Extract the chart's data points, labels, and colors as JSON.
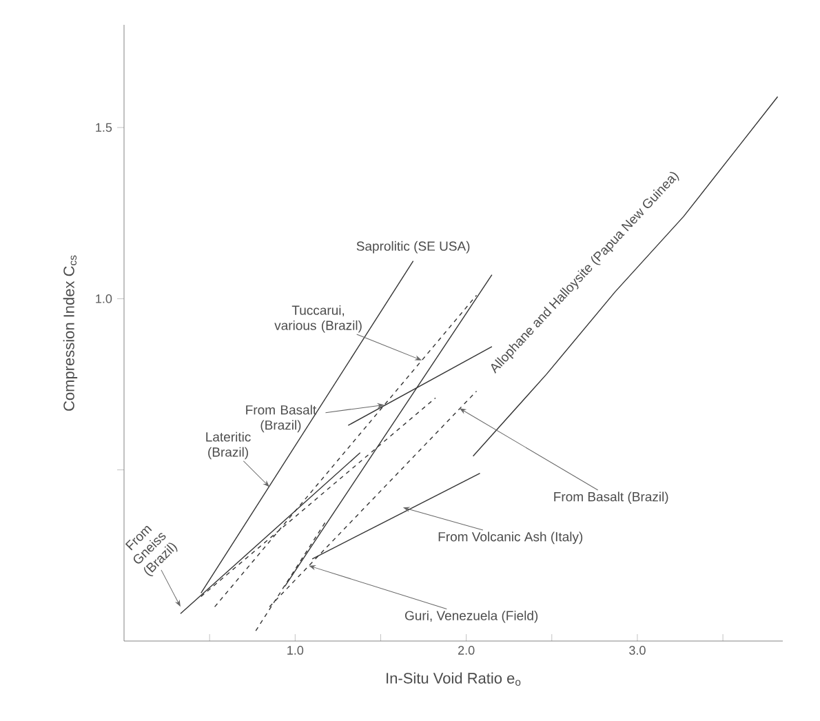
{
  "chart_data": {
    "type": "line",
    "xlabel": "In-Situ Void Ratio e$_{o}$",
    "ylabel": "Compression Index C$_{cs}$",
    "xlim": [
      0,
      3.85
    ],
    "ylim": [
      0,
      1.8
    ],
    "xticks": [
      {
        "value": 0.5,
        "label": null
      },
      {
        "value": 1,
        "label": "1.0"
      },
      {
        "value": 1.5,
        "label": null
      },
      {
        "value": 2,
        "label": "2.0"
      },
      {
        "value": 2.5,
        "label": null
      },
      {
        "value": 3,
        "label": "3.0"
      },
      {
        "value": 3.5,
        "label": null
      }
    ],
    "yticks": [
      {
        "value": 0.5,
        "label": null
      },
      {
        "value": 1,
        "label": "1.0"
      },
      {
        "value": 1.5,
        "label": "1.5"
      }
    ],
    "marker": "none",
    "series": [
      {
        "color": "#333333",
        "line_style": "solid",
        "x": [
          2.04,
          2.47,
          2.87,
          3.27,
          3.6,
          3.82
        ],
        "values": [
          0.54,
          0.78,
          1.02,
          1.24,
          1.45,
          1.59
        ]
      },
      {
        "color": "#333333",
        "line_style": "solid",
        "x": [
          0.45,
          1.69
        ],
        "values": [
          0.14,
          1.11
        ]
      },
      {
        "color": "#333333",
        "line_style": "dashed",
        "x": [
          0.53,
          2.06
        ],
        "values": [
          0.1,
          1.01
        ]
      },
      {
        "color": "#333333",
        "line_style": "solid",
        "x": [
          0.94,
          2.15
        ],
        "values": [
          0.16,
          1.07
        ]
      },
      {
        "color": "#333333",
        "line_style": "solid",
        "x": [
          0.33,
          1.38
        ],
        "values": [
          0.08,
          0.55
        ]
      },
      {
        "color": "#333333",
        "line_style": "dashed",
        "x": [
          0.45,
          1.82
        ],
        "values": [
          0.13,
          0.71
        ]
      },
      {
        "color": "#333333",
        "line_style": "solid",
        "x": [
          1.31,
          2.15
        ],
        "values": [
          0.63,
          0.86
        ]
      },
      {
        "color": "#333333",
        "line_style": "dashed",
        "x": [
          0.85,
          2.06
        ],
        "values": [
          0.1,
          0.73
        ]
      },
      {
        "color": "#333333",
        "line_style": "solid",
        "x": [
          1.1,
          2.08
        ],
        "values": [
          0.24,
          0.49
        ]
      },
      {
        "color": "#333333",
        "line_style": "dashed",
        "x": [
          0.77,
          1.18
        ],
        "values": [
          0.03,
          0.35
        ]
      }
    ],
    "annotations": [
      {
        "text": "Saprolitic (SE USA)",
        "x": 1.69,
        "y": 1.11
      },
      {
        "text": "Tuccarui, various (Brazil)",
        "x": 1.74,
        "y": 0.82
      },
      {
        "text": "From Basalt (Brazil)",
        "x": 1.52,
        "y": 0.69
      },
      {
        "text": "Lateritic (Brazil)",
        "x": 0.85,
        "y": 0.45
      },
      {
        "text": "From Gneiss (Brazil)",
        "x": 0.33,
        "y": 0.1
      },
      {
        "text": "Allophane and Halloysite (Papua New Guinea)",
        "x": 2.87,
        "y": 1.02
      },
      {
        "text": "From Basalt (Brazil)",
        "x": 1.96,
        "y": 0.68
      },
      {
        "text": "From Volcanic Ash (Italy)",
        "x": 1.63,
        "y": 0.39
      },
      {
        "text": "Guri, Venezuela (Field)",
        "x": 1.08,
        "y": 0.22
      }
    ]
  }
}
